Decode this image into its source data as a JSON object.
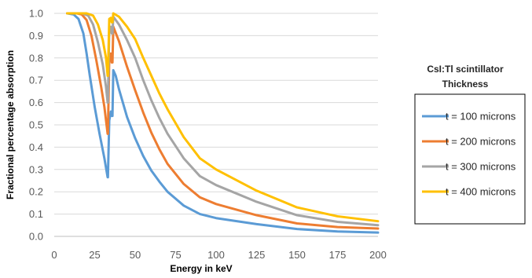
{
  "chart_data": {
    "type": "line",
    "xlabel": "Energy in keV",
    "ylabel": "Fractional percentage absorption",
    "xlim": [
      0,
      200
    ],
    "ylim": [
      0,
      1.0
    ],
    "x_ticks": [
      "0",
      "25",
      "50",
      "75",
      "100",
      "125",
      "150",
      "175",
      "200"
    ],
    "y_ticks": [
      "0.0",
      "0.1",
      "0.2",
      "0.3",
      "0.4",
      "0.5",
      "0.6",
      "0.7",
      "0.8",
      "0.9",
      "1.0"
    ],
    "grid": "horizontal",
    "legend_title_lines": [
      "CsI:Tl scintillator",
      "Thickness"
    ],
    "legend_position": "right",
    "series": [
      {
        "name": "t = 100 microns",
        "color": "#5B9BD5",
        "points": [
          [
            8,
            1.0
          ],
          [
            12,
            0.995
          ],
          [
            15,
            0.975
          ],
          [
            18,
            0.91
          ],
          [
            20,
            0.82
          ],
          [
            22,
            0.72
          ],
          [
            25,
            0.58
          ],
          [
            28,
            0.46
          ],
          [
            31,
            0.35
          ],
          [
            33,
            0.265
          ],
          [
            33.17,
            0.265
          ],
          [
            34,
            0.52
          ],
          [
            35,
            0.56
          ],
          [
            35.5,
            0.54
          ],
          [
            35.98,
            0.54
          ],
          [
            36.5,
            0.745
          ],
          [
            38,
            0.72
          ],
          [
            40,
            0.66
          ],
          [
            45,
            0.535
          ],
          [
            50,
            0.44
          ],
          [
            55,
            0.36
          ],
          [
            60,
            0.295
          ],
          [
            65,
            0.245
          ],
          [
            70,
            0.2
          ],
          [
            80,
            0.138
          ],
          [
            90,
            0.1
          ],
          [
            100,
            0.082
          ],
          [
            125,
            0.055
          ],
          [
            150,
            0.033
          ],
          [
            175,
            0.022
          ],
          [
            200,
            0.017
          ]
        ]
      },
      {
        "name": "t = 200 microns",
        "color": "#ED7D31",
        "points": [
          [
            8,
            1.0
          ],
          [
            14,
            1.0
          ],
          [
            17,
            0.995
          ],
          [
            20,
            0.97
          ],
          [
            23,
            0.9
          ],
          [
            26,
            0.79
          ],
          [
            29,
            0.67
          ],
          [
            31,
            0.58
          ],
          [
            33,
            0.46
          ],
          [
            33.17,
            0.46
          ],
          [
            34,
            0.8
          ],
          [
            35,
            0.82
          ],
          [
            35.5,
            0.78
          ],
          [
            35.98,
            0.78
          ],
          [
            36.5,
            0.94
          ],
          [
            40,
            0.875
          ],
          [
            45,
            0.76
          ],
          [
            50,
            0.655
          ],
          [
            55,
            0.555
          ],
          [
            60,
            0.465
          ],
          [
            65,
            0.39
          ],
          [
            70,
            0.325
          ],
          [
            80,
            0.235
          ],
          [
            90,
            0.175
          ],
          [
            100,
            0.145
          ],
          [
            125,
            0.095
          ],
          [
            150,
            0.058
          ],
          [
            175,
            0.042
          ],
          [
            200,
            0.035
          ]
        ]
      },
      {
        "name": "t = 300 microns",
        "color": "#A5A5A5",
        "points": [
          [
            8,
            1.0
          ],
          [
            17,
            1.0
          ],
          [
            21,
            0.99
          ],
          [
            24,
            0.95
          ],
          [
            27,
            0.87
          ],
          [
            30,
            0.77
          ],
          [
            32,
            0.67
          ],
          [
            33,
            0.6
          ],
          [
            33.17,
            0.6
          ],
          [
            34,
            0.93
          ],
          [
            35,
            0.94
          ],
          [
            35.5,
            0.91
          ],
          [
            35.98,
            0.91
          ],
          [
            36.5,
            0.985
          ],
          [
            40,
            0.95
          ],
          [
            45,
            0.88
          ],
          [
            50,
            0.8
          ],
          [
            55,
            0.7
          ],
          [
            60,
            0.61
          ],
          [
            65,
            0.53
          ],
          [
            70,
            0.46
          ],
          [
            80,
            0.35
          ],
          [
            90,
            0.27
          ],
          [
            100,
            0.23
          ],
          [
            125,
            0.155
          ],
          [
            150,
            0.095
          ],
          [
            175,
            0.065
          ],
          [
            200,
            0.05
          ]
        ]
      },
      {
        "name": "t = 400 microns",
        "color": "#FFC000",
        "points": [
          [
            8,
            1.0
          ],
          [
            20,
            1.0
          ],
          [
            24,
            0.99
          ],
          [
            27,
            0.95
          ],
          [
            30,
            0.88
          ],
          [
            32,
            0.8
          ],
          [
            33,
            0.72
          ],
          [
            33.17,
            0.72
          ],
          [
            34,
            0.975
          ],
          [
            35,
            0.98
          ],
          [
            35.5,
            0.96
          ],
          [
            35.98,
            0.96
          ],
          [
            36.5,
            1.0
          ],
          [
            40,
            0.985
          ],
          [
            45,
            0.94
          ],
          [
            50,
            0.885
          ],
          [
            55,
            0.8
          ],
          [
            60,
            0.72
          ],
          [
            65,
            0.64
          ],
          [
            70,
            0.57
          ],
          [
            80,
            0.445
          ],
          [
            90,
            0.35
          ],
          [
            100,
            0.3
          ],
          [
            125,
            0.205
          ],
          [
            150,
            0.13
          ],
          [
            175,
            0.09
          ],
          [
            200,
            0.068
          ]
        ]
      }
    ]
  }
}
